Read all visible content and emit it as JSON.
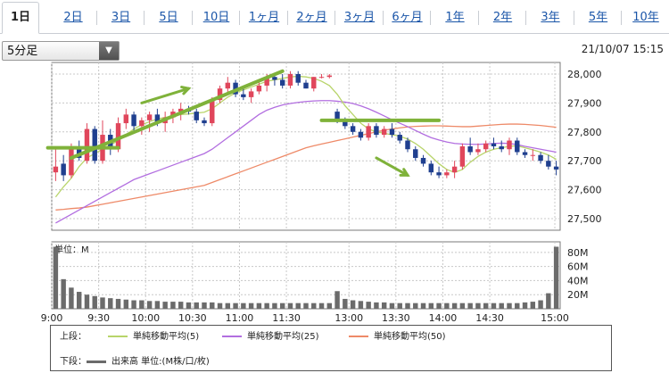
{
  "tabs": [
    {
      "label": "1日",
      "active": true
    },
    {
      "label": "2日"
    },
    {
      "label": "3日"
    },
    {
      "label": "5日"
    },
    {
      "label": "10日"
    },
    {
      "label": "1ヶ月"
    },
    {
      "label": "2ヶ月"
    },
    {
      "label": "3ヶ月"
    },
    {
      "label": "6ヶ月"
    },
    {
      "label": "1年"
    },
    {
      "label": "2年"
    },
    {
      "label": "3年"
    },
    {
      "label": "5年"
    },
    {
      "label": "10年"
    }
  ],
  "interval_select": {
    "value": "5分足",
    "icon": "triangle-down-icon"
  },
  "datetime": "21/10/07 15:15",
  "colors": {
    "up": "#e0465b",
    "down": "#1f3f8f",
    "sma5": "#b8d46a",
    "sma25": "#b26ee0",
    "sma50": "#ee8a68",
    "trend": "#7fb23a",
    "volume": "#6b6b6b",
    "grid": "#c8c8c8"
  },
  "chart_data": [
    {
      "type": "candlestick",
      "x_ticks": [
        "9:00",
        "9:30",
        "10:00",
        "10:30",
        "11:00",
        "11:30",
        "13:00",
        "13:30",
        "14:00",
        "14:30",
        "15:00"
      ],
      "y_ticks": [
        "28,000",
        "27,900",
        "27,800",
        "27,700",
        "27,600",
        "27,500"
      ],
      "ylim": [
        27460,
        28040
      ],
      "candles": [
        [
          27660,
          27740,
          27630,
          27680
        ],
        [
          27690,
          27720,
          27630,
          27650
        ],
        [
          27650,
          27760,
          27640,
          27740
        ],
        [
          27740,
          27770,
          27700,
          27710
        ],
        [
          27700,
          27830,
          27690,
          27810
        ],
        [
          27810,
          27820,
          27690,
          27700
        ],
        [
          27700,
          27840,
          27690,
          27790
        ],
        [
          27790,
          27810,
          27720,
          27740
        ],
        [
          27740,
          27850,
          27730,
          27830
        ],
        [
          27830,
          27880,
          27810,
          27860
        ],
        [
          27860,
          27870,
          27800,
          27820
        ],
        [
          27820,
          27850,
          27790,
          27840
        ],
        [
          27840,
          27870,
          27800,
          27860
        ],
        [
          27860,
          27880,
          27820,
          27830
        ],
        [
          27830,
          27870,
          27800,
          27850
        ],
        [
          27850,
          27880,
          27830,
          27870
        ],
        [
          27870,
          27900,
          27840,
          27880
        ],
        [
          27880,
          27890,
          27860,
          27870
        ],
        [
          27870,
          27880,
          27830,
          27840
        ],
        [
          27840,
          27850,
          27820,
          27830
        ],
        [
          27830,
          27920,
          27820,
          27910
        ],
        [
          27910,
          27960,
          27900,
          27950
        ],
        [
          27950,
          27990,
          27930,
          27970
        ],
        [
          27970,
          27980,
          27920,
          27930
        ],
        [
          27930,
          27950,
          27910,
          27920
        ],
        [
          27920,
          27950,
          27900,
          27940
        ],
        [
          27940,
          27980,
          27930,
          27960
        ],
        [
          27960,
          28000,
          27940,
          27990
        ],
        [
          27990,
          28000,
          27960,
          27980
        ],
        [
          27980,
          28000,
          27950,
          27960
        ],
        [
          27960,
          28010,
          27950,
          28000
        ],
        [
          28000,
          28010,
          27960,
          27970
        ],
        [
          27970,
          27980,
          27950,
          27950
        ],
        [
          27950,
          27990,
          27940,
          27990
        ],
        [
          27990,
          28000,
          27985,
          27990
        ],
        [
          27990,
          28000,
          27985,
          27995
        ],
        [
          27870,
          27880,
          27830,
          27840
        ],
        [
          27840,
          27850,
          27810,
          27820
        ],
        [
          27820,
          27830,
          27790,
          27800
        ],
        [
          27800,
          27810,
          27770,
          27780
        ],
        [
          27780,
          27830,
          27770,
          27820
        ],
        [
          27820,
          27830,
          27780,
          27790
        ],
        [
          27790,
          27820,
          27780,
          27810
        ],
        [
          27810,
          27830,
          27780,
          27790
        ],
        [
          27790,
          27800,
          27760,
          27770
        ],
        [
          27770,
          27780,
          27730,
          27740
        ],
        [
          27740,
          27750,
          27700,
          27710
        ],
        [
          27710,
          27720,
          27680,
          27690
        ],
        [
          27690,
          27700,
          27650,
          27660
        ],
        [
          27660,
          27680,
          27640,
          27650
        ],
        [
          27650,
          27670,
          27640,
          27660
        ],
        [
          27660,
          27700,
          27640,
          27680
        ],
        [
          27680,
          27760,
          27670,
          27750
        ],
        [
          27750,
          27780,
          27720,
          27730
        ],
        [
          27730,
          27760,
          27720,
          27740
        ],
        [
          27740,
          27770,
          27730,
          27760
        ],
        [
          27760,
          27780,
          27740,
          27750
        ],
        [
          27750,
          27770,
          27730,
          27740
        ],
        [
          27740,
          27780,
          27720,
          27770
        ],
        [
          27770,
          27780,
          27720,
          27730
        ],
        [
          27730,
          27740,
          27710,
          27720
        ],
        [
          27720,
          27740,
          27700,
          27720
        ],
        [
          27720,
          27730,
          27690,
          27700
        ],
        [
          27700,
          27720,
          27670,
          27680
        ],
        [
          27680,
          27700,
          27650,
          27670
        ]
      ],
      "sma5": [
        27575,
        27610,
        27640,
        27680,
        27710,
        27725,
        27740,
        27755,
        27770,
        27790,
        27810,
        27825,
        27835,
        27845,
        27850,
        27855,
        27860,
        27862,
        27865,
        27868,
        27880,
        27900,
        27920,
        27935,
        27945,
        27955,
        27965,
        27975,
        27980,
        27985,
        27990,
        27992,
        27990,
        27985,
        27975,
        27960,
        27930,
        27890,
        27860,
        27830,
        27810,
        27800,
        27795,
        27790,
        27785,
        27775,
        27760,
        27740,
        27715,
        27690,
        27670,
        27660,
        27670,
        27695,
        27715,
        27730,
        27740,
        27745,
        27750,
        27752,
        27745,
        27738,
        27730,
        27720,
        27705
      ],
      "sma25": [
        27485,
        27500,
        27515,
        27530,
        27545,
        27560,
        27575,
        27590,
        27605,
        27620,
        27635,
        27645,
        27655,
        27665,
        27675,
        27685,
        27695,
        27705,
        27715,
        27725,
        27740,
        27760,
        27780,
        27800,
        27820,
        27840,
        27860,
        27875,
        27885,
        27893,
        27898,
        27902,
        27905,
        27907,
        27908,
        27908,
        27906,
        27903,
        27898,
        27890,
        27880,
        27868,
        27855,
        27842,
        27830,
        27818,
        27805,
        27792,
        27780,
        27772,
        27765,
        27760,
        27758,
        27757,
        27757,
        27758,
        27760,
        27761,
        27760,
        27756,
        27750,
        27745,
        27740,
        27735,
        27730
      ],
      "sma50": [
        27530,
        27532,
        27535,
        27537,
        27540,
        27545,
        27550,
        27555,
        27560,
        27565,
        27570,
        27575,
        27580,
        27585,
        27590,
        27595,
        27600,
        27605,
        27610,
        27615,
        27625,
        27635,
        27645,
        27655,
        27665,
        27675,
        27685,
        27695,
        27705,
        27715,
        27725,
        27735,
        27745,
        27752,
        27758,
        27764,
        27770,
        27776,
        27782,
        27788,
        27794,
        27800,
        27806,
        27810,
        27814,
        27817,
        27819,
        27820,
        27821,
        27821,
        27820,
        27819,
        27818,
        27818,
        27820,
        27822,
        27824,
        27826,
        27827,
        27827,
        27826,
        27824,
        27822,
        27819,
        27816
      ],
      "trendlines": [
        {
          "from": [
            2,
            27710
          ],
          "to": [
            29,
            28010
          ]
        },
        {
          "from": [
            -1,
            27745
          ],
          "to": [
            8,
            27745
          ]
        },
        {
          "from": [
            34,
            27840
          ],
          "to": [
            49,
            27840
          ]
        }
      ],
      "arrows": [
        {
          "from": [
            11,
            27900
          ],
          "to": [
            17,
            27950
          ]
        },
        {
          "from": [
            41,
            27710
          ],
          "to": [
            45,
            27650
          ]
        }
      ]
    },
    {
      "type": "bar",
      "unit_label": "単位：M",
      "y_ticks": [
        "80M",
        "60M",
        "40M",
        "20M"
      ],
      "ylim": [
        0,
        95
      ],
      "values": [
        88,
        42,
        30,
        24,
        20,
        18,
        16,
        15,
        14,
        13,
        12,
        12,
        11,
        11,
        10,
        10,
        10,
        9,
        9,
        9,
        9,
        8,
        8,
        8,
        8,
        8,
        8,
        8,
        8,
        8,
        8,
        8,
        8,
        8,
        8,
        8,
        25,
        14,
        12,
        11,
        10,
        9,
        9,
        8,
        8,
        8,
        8,
        8,
        8,
        8,
        8,
        8,
        8,
        8,
        8,
        8,
        8,
        8,
        8,
        8,
        9,
        10,
        12,
        22,
        88
      ]
    }
  ],
  "legend": {
    "upper": {
      "label": "上段：",
      "items": [
        {
          "name": "単純移動平均(5)"
        },
        {
          "name": "単純移動平均(25)"
        },
        {
          "name": "単純移動平均(50)"
        }
      ]
    },
    "lower": {
      "label": "下段：",
      "items": [
        {
          "name": "出来高 単位:(M株/口/枚)"
        }
      ]
    }
  }
}
